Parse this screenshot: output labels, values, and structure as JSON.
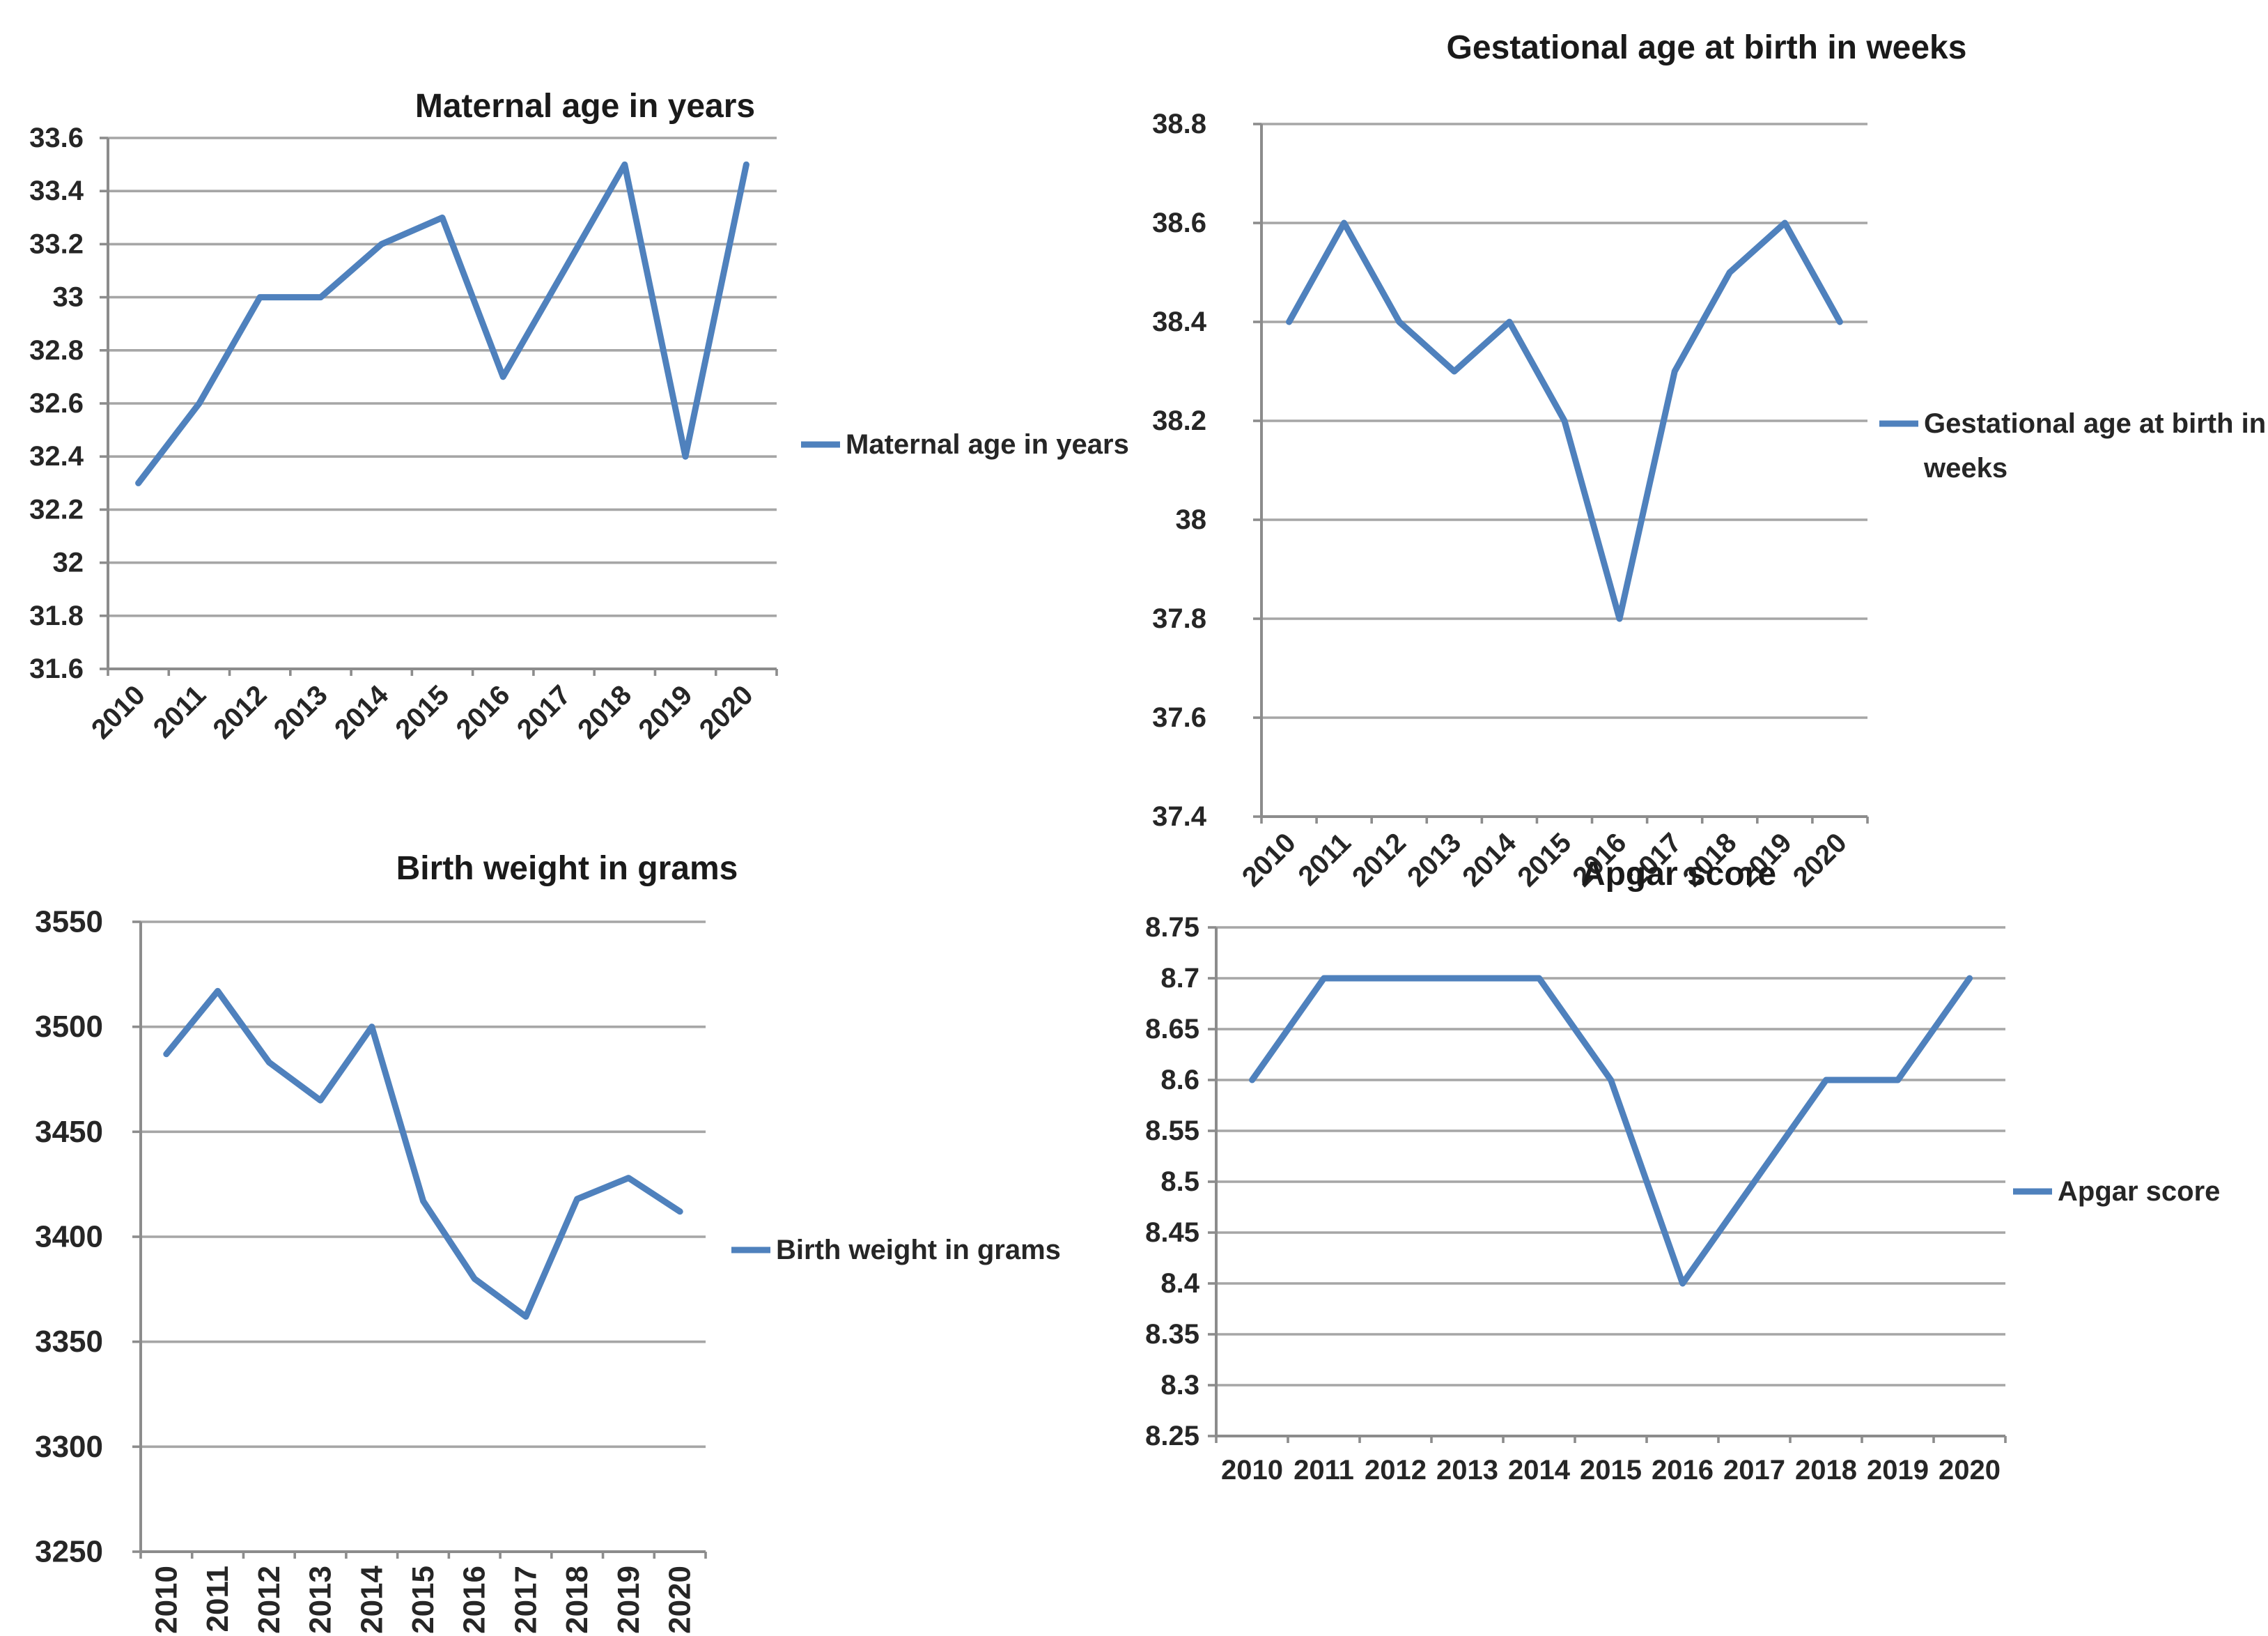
{
  "figure_background": "#ffffff",
  "colors": {
    "series_line": "#4f81bd",
    "gridline": "#a6a6a6",
    "axis_line": "#8c8c8c",
    "title_text": "#1a1a1a",
    "tick_text": "#262626"
  },
  "chart_data": [
    {
      "type": "line",
      "title": "Maternal age in years",
      "legend": [
        "Maternal age in years"
      ],
      "legend_position": "right",
      "grid": true,
      "categories": [
        "2010",
        "2011",
        "2012",
        "2013",
        "2014",
        "2015",
        "2016",
        "2017",
        "2018",
        "2019",
        "2020"
      ],
      "values": [
        32.3,
        32.6,
        33,
        33,
        33.2,
        33.3,
        32.7,
        33.1,
        33.5,
        32.4,
        33.5
      ],
      "ylim": [
        31.6,
        33.6
      ],
      "ytick_step": 0.2,
      "ytick_labels": [
        "33.6",
        "33.4",
        "33.2",
        "33",
        "32.8",
        "32.6",
        "32.4",
        "32.2",
        "32",
        "31.8",
        "31.6"
      ],
      "xlabel": "",
      "ylabel": "",
      "x_tick_rotation": -45
    },
    {
      "type": "line",
      "title": "Gestational age at birth in weeks",
      "legend": [
        "Gestational age at birth in",
        "weeks"
      ],
      "legend_position": "right",
      "grid": true,
      "categories": [
        "2010",
        "2011",
        "2012",
        "2013",
        "2014",
        "2015",
        "2016",
        "2017",
        "2018",
        "2019",
        "2020"
      ],
      "values": [
        38.4,
        38.6,
        38.4,
        38.3,
        38.4,
        38.2,
        37.8,
        38.3,
        38.5,
        38.6,
        38.4
      ],
      "ylim": [
        37.4,
        38.8
      ],
      "ytick_step": 0.2,
      "ytick_labels": [
        "38.8",
        "38.6",
        "38.4",
        "38.2",
        "38",
        "37.8",
        "37.6",
        "37.4"
      ],
      "xlabel": "",
      "ylabel": "",
      "x_tick_rotation": -45
    },
    {
      "type": "line",
      "title": "Birth weight in grams",
      "legend": [
        "Birth weight in grams"
      ],
      "legend_position": "right",
      "grid": true,
      "categories": [
        "2010",
        "2011",
        "2012",
        "2013",
        "2014",
        "2015",
        "2016",
        "2017",
        "2018",
        "2019",
        "2020"
      ],
      "values": [
        3487,
        3517,
        3483,
        3465,
        3500,
        3417,
        3380,
        3362,
        3418,
        3428,
        3412
      ],
      "ylim": [
        3250,
        3550
      ],
      "ytick_step": 50,
      "ytick_labels": [
        "3550",
        "3500",
        "3450",
        "3400",
        "3350",
        "3300",
        "3250"
      ],
      "xlabel": "",
      "ylabel": "",
      "x_tick_rotation": -90
    },
    {
      "type": "line",
      "title": "Apgar score",
      "legend": [
        "Apgar score"
      ],
      "legend_position": "right",
      "grid": true,
      "categories": [
        "2010",
        "2011",
        "2012",
        "2013",
        "2014",
        "2015",
        "2016",
        "2017",
        "2018",
        "2019",
        "2020"
      ],
      "values": [
        8.6,
        8.7,
        8.7,
        8.7,
        8.7,
        8.6,
        8.4,
        8.5,
        8.6,
        8.6,
        8.7
      ],
      "ylim": [
        8.25,
        8.75
      ],
      "ytick_step": 0.05,
      "ytick_labels": [
        "8.75",
        "8.7",
        "8.65",
        "8.6",
        "8.55",
        "8.5",
        "8.45",
        "8.4",
        "8.35",
        "8.3",
        "8.25"
      ],
      "xlabel": "",
      "ylabel": "",
      "x_tick_rotation": 0
    }
  ]
}
